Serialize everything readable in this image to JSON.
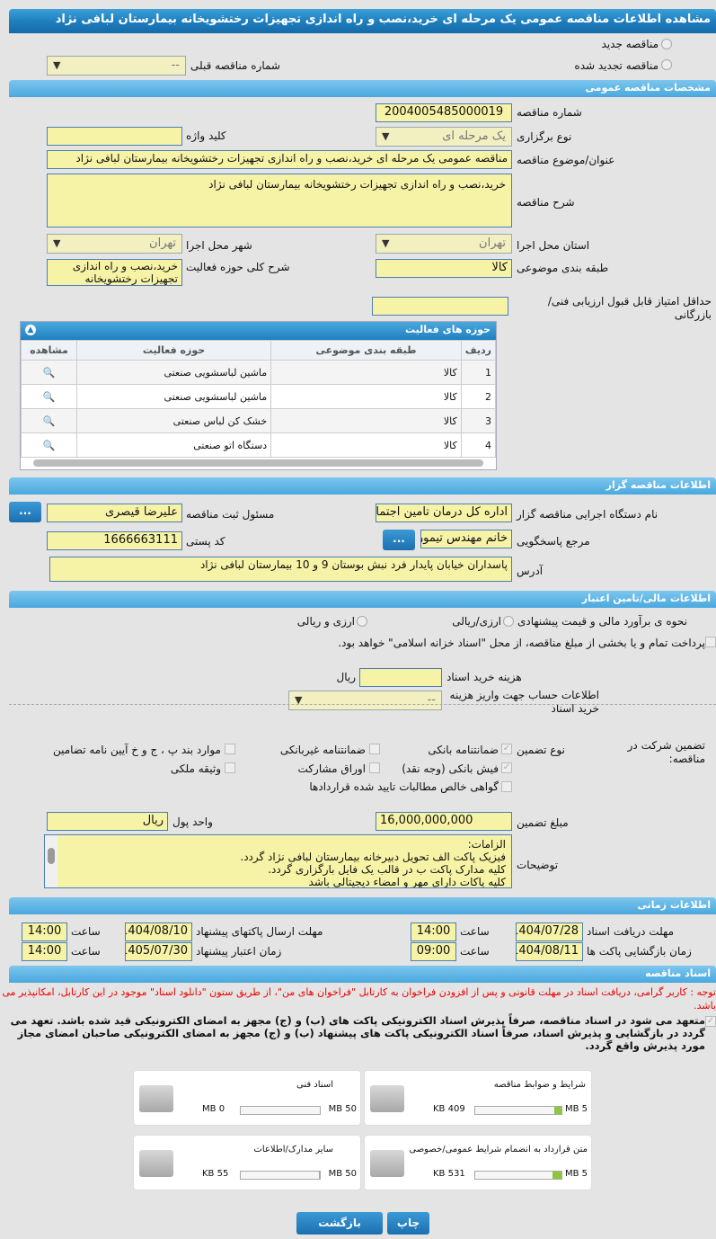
{
  "title": "مشاهده اطلاعات مناقصه عمومی یک مرحله ای خرید،نصب و راه اندازی تجهیزات رختشویخانه بیمارستان لبافی نژاد",
  "top": {
    "new_label": "مناقصه جدید",
    "renewed_label": "مناقصه تجدید شده",
    "prev_label": "شماره مناقصه قبلی",
    "prev_value": "--"
  },
  "general": {
    "header": "مشخصات مناقصه عمومی",
    "number_label": "شماره مناقصه",
    "number": "2004005485000019",
    "type_label": "نوع برگزاری",
    "type": "یک مرحله ای",
    "keyword_label": "کلید واژه",
    "keyword": "",
    "subject_label": "عنوان/موضوع مناقصه",
    "subject": "مناقصه عمومی یک مرحله ای خرید،نصب و راه اندازی تجهیزات رختشویخانه بیمارستان لبافی نژاد",
    "desc_label": "شرح مناقصه",
    "desc": "خرید،نصب و راه اندازی تجهیزات رختشویخانه بیمارستان لبافی نژاد",
    "province_label": "استان محل اجرا",
    "province": "تهران",
    "city_label": "شهر محل اجرا",
    "city": "تهران",
    "category_label": "طبقه بندی موضوعی",
    "category": "کالا",
    "activity_desc_label": "شرح کلی حوزه فعالیت",
    "activity_desc": "خرید،نصب و راه اندازی تجهیزات رختشویخانه",
    "minscore_label": "حداقل امتیاز قابل قبول ارزیابی فنی/بازرگانی",
    "minscore": ""
  },
  "activities": {
    "header": "حوزه های فعالیت",
    "columns": [
      "ردیف",
      "طبقه بندی موضوعی",
      "حوزه فعالیت",
      "مشاهده"
    ],
    "rows": [
      [
        "1",
        "کالا",
        "ماشین لباسشویی صنعتی"
      ],
      [
        "2",
        "کالا",
        "ماشین لباسشویی صنعتی"
      ],
      [
        "3",
        "کالا",
        "خشک کن لباس صنعتی"
      ],
      [
        "4",
        "کالا",
        "دستگاه اتو صنعتی"
      ]
    ]
  },
  "organizer": {
    "header": "اطلاعات مناقصه گزار",
    "org_label": "نام دستگاه اجرایی مناقصه گزار",
    "org": "اداره کل درمان تامین اجتماعی",
    "resp_label": "مسئول ثبت مناقصه",
    "resp": "علیرضا قیصری",
    "more": "...",
    "ref_label": "مرجع پاسخگویی",
    "ref": "خانم مهندس تیموری",
    "postal_label": "کد پستی",
    "postal": "1666663111",
    "address_label": "آدرس",
    "address": "پاسداران خیابان پایدار فرد نبش بوستان 9 و 10 بیمارستان لبافی نژاد"
  },
  "finance": {
    "header": "اطلاعات مالی/تامین اعتبار",
    "method_label": "نحوه ی برآورد مالی و قیمت پیشنهادی",
    "opt1": "ارزی/ریالی",
    "opt2": "ارزی و ریالی",
    "treasury_text": "پرداخت تمام و یا بخشی از مبلغ مناقصه، از محل \"اسناد خزانه اسلامی\" خواهد بود.",
    "doc_cost_label": "هزینه خرید اسناد",
    "doc_cost": "",
    "rial": "ریال",
    "account_label": "اطلاعات حساب جهت واریز هزینه خرید اسناد",
    "account": "--"
  },
  "guarantee": {
    "label": "تضمین شرکت در مناقصه:",
    "type_label": "نوع تضمین",
    "items": [
      "ضمانتنامه بانکی",
      "ضمانتنامه غیربانکی",
      "موارد بند پ ، ج و خ آیین نامه تضامین",
      "فیش بانکی (وجه نقد)",
      "اوراق مشارکت",
      "وثیقه ملکی",
      "گواهی خالص مطالبات تایید شده قراردادها"
    ],
    "amount_label": "مبلغ تضمین",
    "amount": "16,000,000,000",
    "unit_label": "واحد پول",
    "unit": "ریال",
    "notes_label": "توضیحات",
    "notes": [
      "الزامات:",
      "فیزیک پاکت الف تحویل دبیرخانه بیمارستان لبافی نژاد گردد.",
      "کلیه مدارک پاکت ب در قالب یک فایل بارگزاری گردد.",
      "کلیه پاکات دارای مهر و امضاء دیجیتالی باشد"
    ]
  },
  "timing": {
    "header": "اطلاعات زمانی",
    "hour": "ساعت",
    "doc_deadline_label": "مهلت دریافت اسناد",
    "doc_deadline": "1404/07/28",
    "doc_deadline_time": "14:00",
    "send_label": "مهلت ارسال پاکتهای پیشنهاد",
    "send": "1404/08/10",
    "send_time": "14:00",
    "open_label": "زمان بازگشایی پاکت ها",
    "open": "1404/08/11",
    "open_time": "09:00",
    "valid_label": "زمان اعتبار پیشنهاد",
    "valid": "1405/07/30",
    "valid_time": "14:00"
  },
  "docs": {
    "header": "اسناد مناقصه",
    "notice": "توجه : کاربر گرامی، دریافت اسناد در مهلت قانونی و پس از افزودن فراخوان به کارتابل \"فراخوان های من\"، از طریق ستون \"دانلود اسناد\" موجود در این کارتابل، امکانپذیر می باشد.",
    "commit": "متعهد می شود در اسناد مناقصه، صرفاً پذیرش اسناد الکترونیکی پاکت های (ب) و (ج) مجهز به امضای الکترونیکی قید شده باشد. تعهد می گردد در بازگشایی و پذیرش اسناد، صرفاً اسناد الکترونیکی پاکت های پیشنهاد (ب) و (ج) مجهز به امضای الکترونیکی صاحبان امضای مجاز مورد پذیرش واقع گردد.",
    "files": [
      {
        "name": "شرایط و ضوابط مناقصه",
        "size": "409 KB",
        "max": "5 MB",
        "fill": 8
      },
      {
        "name": "اسناد فنی",
        "size": "0 MB",
        "max": "50 MB",
        "fill": 0
      },
      {
        "name": "متن قرارداد به انضمام شرایط عمومی/خصوصی",
        "size": "531 KB",
        "max": "5 MB",
        "fill": 10
      },
      {
        "name": "سایر مدارک/اطلاعات",
        "size": "55 KB",
        "max": "50 MB",
        "fill": 1
      }
    ]
  },
  "buttons": {
    "back": "بازگشت",
    "print": "چاپ"
  }
}
